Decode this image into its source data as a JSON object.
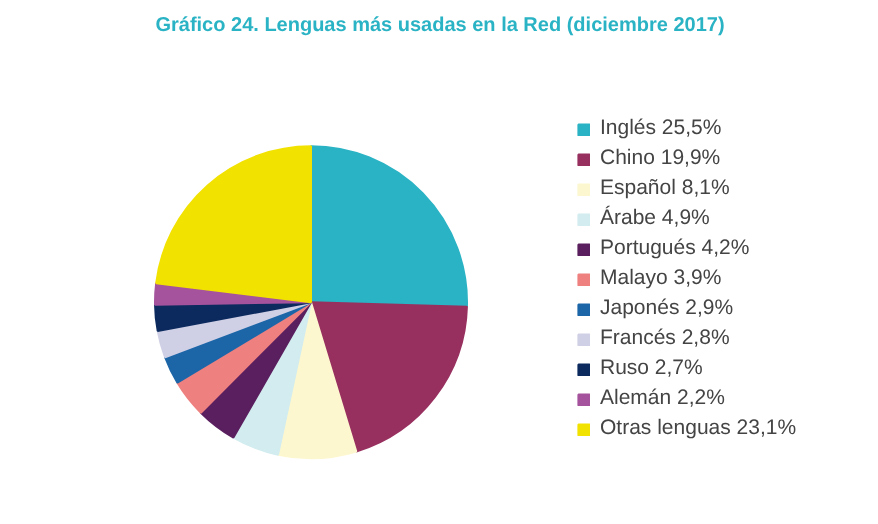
{
  "chart_data": {
    "type": "pie",
    "title": "Gráfico 24. Lenguas más usadas en la Red (diciembre 2017)",
    "categories": [
      "Inglés 25,5%",
      "Chino 19,9%",
      "Español 8,1%",
      "Árabe 4,9%",
      "Portugués 4,2%",
      "Malayo 3,9%",
      "Japonés 2,9%",
      "Francés 2,8%",
      "Ruso 2,7%",
      "Alemán 2,2%",
      "Otras lenguas 23,1%"
    ],
    "values": [
      25.5,
      19.9,
      8.1,
      4.9,
      4.2,
      3.9,
      2.9,
      2.8,
      2.7,
      2.2,
      23.1
    ],
    "colors": [
      "#2ab3c4",
      "#98305f",
      "#fdf7cf",
      "#d2ecef",
      "#5a1f5e",
      "#ee817f",
      "#1c66a8",
      "#cfcfe5",
      "#0c2a5e",
      "#a5539c",
      "#f2e200"
    ],
    "legend": "right"
  }
}
